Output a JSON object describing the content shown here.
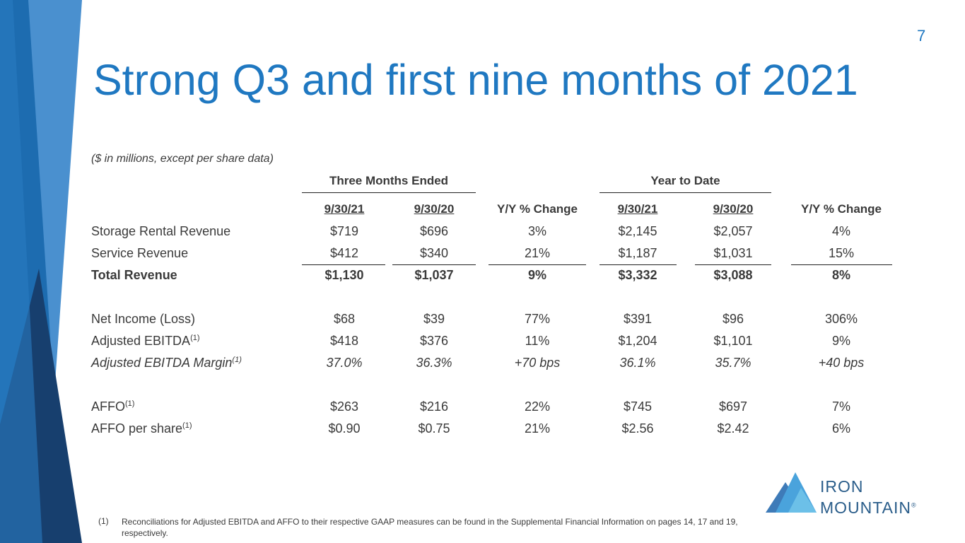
{
  "page_number": "7",
  "title": "Strong Q3 and first nine months of 2021",
  "table": {
    "note": "($ in millions, except per share data)",
    "groups": [
      "Three Months Ended",
      "Year to Date"
    ],
    "columns": [
      "9/30/21",
      "9/30/20",
      "Y/Y % Change",
      "9/30/21",
      "9/30/20",
      "Y/Y % Change"
    ],
    "rows": [
      {
        "label": "Storage Rental Revenue",
        "cells": [
          "$719",
          "$696",
          "3%",
          "$2,145",
          "$2,057",
          "4%"
        ]
      },
      {
        "label": "Service Revenue",
        "cells": [
          "$412",
          "$340",
          "21%",
          "$1,187",
          "$1,031",
          "15%"
        ]
      },
      {
        "label": "Total Revenue",
        "cells": [
          "$1,130",
          "$1,037",
          "9%",
          "$3,332",
          "$3,088",
          "8%"
        ]
      },
      {
        "label": "Net Income (Loss)",
        "cells": [
          "$68",
          "$39",
          "77%",
          "$391",
          "$96",
          "306%"
        ]
      },
      {
        "label": "Adjusted EBITDA",
        "footnote_ref": "(1)",
        "cells": [
          "$418",
          "$376",
          "11%",
          "$1,204",
          "$1,101",
          "9%"
        ]
      },
      {
        "label": "Adjusted EBITDA Margin",
        "footnote_ref": "(1)",
        "cells": [
          "37.0%",
          "36.3%",
          "+70 bps",
          "36.1%",
          "35.7%",
          "+40 bps"
        ]
      },
      {
        "label": "AFFO",
        "footnote_ref": "(1)",
        "cells": [
          "$263",
          "$216",
          "22%",
          "$745",
          "$697",
          "7%"
        ]
      },
      {
        "label": "AFFO per share",
        "footnote_ref": "(1)",
        "cells": [
          "$0.90",
          "$0.75",
          "21%",
          "$2.56",
          "$2.42",
          "6%"
        ]
      }
    ]
  },
  "footnote": {
    "marker": "(1)",
    "text": "Reconciliations for Adjusted EBITDA and AFFO to their respective GAAP measures can be found in the Supplemental Financial Information on pages 14, 17 and 19, respectively."
  },
  "logo": {
    "line1": "IRON",
    "line2": "MOUNTAIN",
    "mark": "®"
  }
}
